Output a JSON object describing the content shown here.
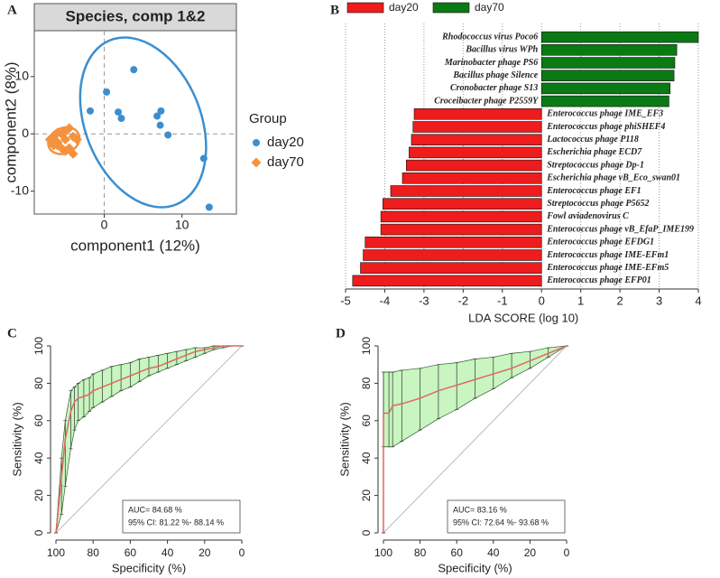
{
  "chart_data": [
    {
      "type": "scatter",
      "panel": "A",
      "title": "Species, comp 1&2",
      "xlabel": "component1 (12%)",
      "ylabel": "component2 (8%)",
      "legend_title": "Group",
      "xlim": [
        -9,
        17
      ],
      "ylim": [
        -14,
        18
      ],
      "xticks": [
        0,
        10
      ],
      "yticks": [
        -10,
        0,
        10
      ],
      "series": [
        {
          "name": "day20",
          "color": "#3b8fd0",
          "marker": "circle",
          "x": [
            3.8,
            0.3,
            -1.8,
            1.8,
            2.2,
            7.3,
            6.8,
            7.2,
            8.2,
            12.8,
            13.5
          ],
          "y": [
            11.2,
            7.3,
            4.0,
            3.8,
            2.7,
            4.0,
            3.1,
            1.5,
            -0.2,
            -4.3,
            -12.8
          ]
        },
        {
          "name": "day70",
          "color": "#f5923e",
          "marker": "diamond",
          "x": [
            -7.0,
            -6.5,
            -6.0,
            -5.5,
            -5.0,
            -4.5,
            -4.0,
            -6.0,
            -5.0,
            -4.5,
            -6.5,
            -3.5,
            -5.5,
            -4.0,
            -5.0,
            -6.0
          ],
          "y": [
            -1.0,
            -0.5,
            -2.0,
            0.0,
            -1.0,
            -2.5,
            -0.5,
            -1.5,
            -3.0,
            1.0,
            -2.0,
            -1.0,
            -2.5,
            -3.5,
            0.5,
            0.2
          ]
        }
      ]
    },
    {
      "type": "barh",
      "panel": "B",
      "xlabel": "LDA SCORE (log 10)",
      "xlim": [
        -5,
        4
      ],
      "xticks": [
        -5,
        -4,
        -3,
        -2,
        -1,
        0,
        1,
        2,
        3,
        4
      ],
      "grid": true,
      "categories": [
        "Rhodococcus virus Poco6",
        "Bacillus virus WPh",
        "Marinobacter phage PS6",
        "Bacillus phage Silence",
        "Cronobacter phage S13",
        "Croceibacter phage P2559Y",
        "Enterococcus phage IME_EF3",
        "Enterococcus phage phiSHEF4",
        "Lactococcus phage P118",
        "Escherichia phage ECD7",
        "Streptococcus phage Dp-1",
        "Escherichia phage vB_Eco_swan01",
        "Enterococcus phage EF1",
        "Streptococcus phage P5652",
        "Fowl aviadenovirus C",
        "Enterococcus phage vB_EfaP_IME199",
        "Enterococcus phage EFDG1",
        "Enterococcus phage IME-EFm1",
        "Enterococcus phage IME-EFm5",
        "Enterococcus phage EFP01"
      ],
      "series": [
        {
          "name": "day20",
          "color": "#ee1c1c",
          "values": [
            null,
            null,
            null,
            null,
            null,
            null,
            -3.25,
            -3.28,
            -3.32,
            -3.38,
            -3.45,
            -3.55,
            -3.85,
            -4.05,
            -4.1,
            -4.1,
            -4.5,
            -4.55,
            -4.62,
            -4.82
          ]
        },
        {
          "name": "day70",
          "color": "#0a7a14",
          "values": [
            4.0,
            3.45,
            3.4,
            3.38,
            3.28,
            3.25,
            null,
            null,
            null,
            null,
            null,
            null,
            null,
            null,
            null,
            null,
            null,
            null,
            null,
            null
          ]
        }
      ]
    },
    {
      "type": "roc",
      "panel": "C",
      "xlabel": "Specificity (%)",
      "ylabel": "Sensitivity (%)",
      "xlim": [
        100,
        0
      ],
      "ylim": [
        0,
        100
      ],
      "xticks": [
        100,
        80,
        60,
        40,
        20,
        0
      ],
      "yticks": [
        0,
        20,
        40,
        60,
        80,
        100
      ],
      "line_color": "#e06666",
      "band_color": "#c8f5c0",
      "annotations": [
        "AUC= 84.68 %",
        "95% CI: 81.22 %- 88.14 %"
      ],
      "x": [
        100,
        97,
        95,
        92,
        90,
        88,
        85,
        82,
        80,
        75,
        70,
        65,
        60,
        55,
        50,
        45,
        40,
        35,
        30,
        25,
        20,
        15,
        10,
        5,
        0
      ],
      "sensitivity": [
        0,
        30,
        50,
        65,
        70,
        72,
        73,
        74,
        76,
        78,
        80,
        82,
        84,
        86,
        88,
        89,
        91,
        93,
        95,
        97,
        98,
        99,
        100,
        100,
        100
      ],
      "ci_lower": [
        0,
        10,
        25,
        45,
        55,
        60,
        62,
        65,
        67,
        70,
        73,
        76,
        78,
        81,
        84,
        86,
        88,
        90,
        92,
        94,
        96,
        98,
        99,
        100,
        100
      ],
      "ci_upper": [
        0,
        40,
        60,
        76,
        78,
        80,
        82,
        83,
        85,
        87,
        89,
        90,
        91,
        93,
        94,
        95,
        96,
        97,
        98,
        99,
        99,
        100,
        100,
        100,
        100
      ]
    },
    {
      "type": "roc",
      "panel": "D",
      "xlabel": "Specificity (%)",
      "ylabel": "Sensitivity (%)",
      "xlim": [
        100,
        0
      ],
      "ylim": [
        0,
        100
      ],
      "xticks": [
        100,
        80,
        60,
        40,
        20,
        0
      ],
      "yticks": [
        0,
        20,
        40,
        60,
        80,
        100
      ],
      "line_color": "#e06666",
      "band_color": "#c8f5c0",
      "annotations": [
        "AUC= 83.16 %",
        "95% CI: 72.64 %- 93.68 %"
      ],
      "x": [
        100,
        100,
        97,
        95,
        90,
        80,
        70,
        60,
        50,
        40,
        30,
        20,
        10,
        0
      ],
      "sensitivity": [
        0,
        64,
        64,
        68,
        69,
        72,
        76,
        79,
        82,
        85,
        88,
        92,
        96,
        100
      ],
      "ci_lower": [
        0,
        46,
        46,
        46,
        49,
        55,
        61,
        66,
        72,
        77,
        83,
        88,
        94,
        100
      ],
      "ci_upper": [
        0,
        86,
        86,
        86,
        87,
        88,
        90,
        91,
        93,
        94,
        96,
        97,
        99,
        100
      ]
    }
  ]
}
